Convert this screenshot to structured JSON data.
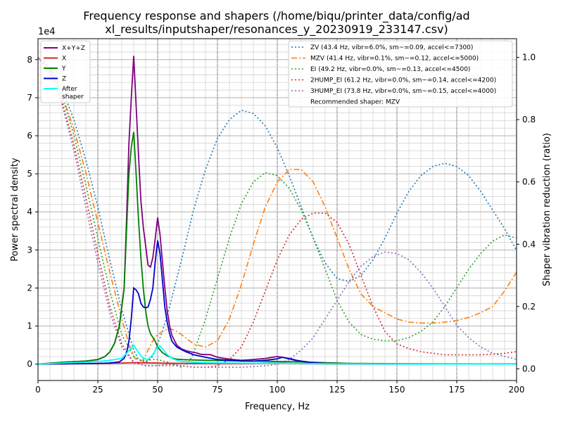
{
  "chart_data": {
    "type": "line",
    "title_line1": "Frequency response and shapers (/home/biqu/printer_data/config/ad",
    "title_line2": "xl_results/inputshaper/resonances_y_20230919_233147.csv)",
    "xlabel": "Frequency, Hz",
    "ylabel": "Power spectral density",
    "y2label": "Shaper vibration reduction (ratio)",
    "y_multiplier": "1e4",
    "xlim": [
      0,
      200
    ],
    "ylim": [
      -4300,
      85500
    ],
    "y2lim": [
      -0.0375,
      1.06
    ],
    "x_ticks": [
      0,
      25,
      50,
      75,
      100,
      125,
      150,
      175,
      200
    ],
    "y_ticks": [
      0,
      10000,
      20000,
      30000,
      40000,
      50000,
      60000,
      70000,
      80000
    ],
    "y_tick_labels": [
      "0",
      "1",
      "2",
      "3",
      "4",
      "5",
      "6",
      "7",
      "8"
    ],
    "y2_ticks": [
      0.0,
      0.2,
      0.4,
      0.6,
      0.8,
      1.0
    ],
    "y2_tick_labels": [
      "0.0",
      "0.2",
      "0.4",
      "0.6",
      "0.8",
      "1.0"
    ],
    "grid": true,
    "legend_left_placement": "top-left",
    "legend_right_placement": "top-right",
    "psd_series": [
      {
        "name": "X+Y+Z",
        "color": "#800080",
        "x": [
          0,
          10,
          20,
          25,
          28,
          30,
          32,
          34,
          36,
          37,
          38,
          39,
          40,
          41,
          42,
          43,
          44,
          45,
          46,
          47,
          48,
          49,
          50,
          51,
          52,
          53,
          54,
          55,
          56,
          58,
          60,
          62,
          64,
          66,
          68,
          70,
          72,
          75,
          80,
          85,
          90,
          95,
          100,
          102,
          105,
          110,
          115,
          120,
          130,
          140,
          150,
          160,
          170,
          180,
          190,
          200
        ],
        "y": [
          0,
          500,
          800,
          1200,
          2000,
          3200,
          5500,
          10000,
          20000,
          38000,
          58000,
          70000,
          81000,
          68000,
          55000,
          43000,
          36000,
          31000,
          26000,
          25500,
          28000,
          33000,
          38500,
          34000,
          27000,
          20000,
          14000,
          10000,
          7500,
          5000,
          4000,
          3500,
          3200,
          3000,
          2600,
          2500,
          2500,
          1800,
          1300,
          1000,
          1200,
          1500,
          2000,
          1800,
          1400,
          600,
          300,
          150,
          100,
          80,
          70,
          60,
          50,
          40,
          30,
          20
        ]
      },
      {
        "name": "X",
        "color": "#d62728",
        "x": [
          0,
          10,
          20,
          30,
          40,
          45,
          50,
          55,
          60,
          70,
          80,
          90,
          100,
          105,
          110,
          120,
          130,
          150,
          200
        ],
        "y": [
          0,
          80,
          120,
          200,
          400,
          350,
          300,
          250,
          200,
          150,
          150,
          200,
          400,
          300,
          150,
          80,
          50,
          30,
          20
        ]
      },
      {
        "name": "Y",
        "color": "#008000",
        "x": [
          0,
          10,
          20,
          25,
          28,
          30,
          32,
          34,
          36,
          37,
          38,
          39,
          40,
          41,
          42,
          43,
          44,
          45,
          46,
          47,
          48,
          49,
          50,
          52,
          54,
          56,
          58,
          60,
          65,
          70,
          80,
          90,
          100,
          110,
          120,
          130,
          150,
          200
        ],
        "y": [
          0,
          500,
          800,
          1200,
          2000,
          3200,
          5500,
          10000,
          20000,
          35000,
          50000,
          57000,
          61000,
          50000,
          38000,
          28000,
          20000,
          14000,
          10000,
          8000,
          7000,
          6000,
          4500,
          3000,
          2200,
          1600,
          1300,
          1200,
          1100,
          1000,
          900,
          800,
          700,
          600,
          400,
          200,
          100,
          50
        ]
      },
      {
        "name": "Z",
        "color": "#0000cc",
        "x": [
          0,
          10,
          20,
          25,
          30,
          34,
          36,
          37,
          38,
          39,
          40,
          41,
          42,
          43,
          44,
          45,
          46,
          47,
          48,
          49,
          50,
          51,
          52,
          53,
          54,
          55,
          56,
          58,
          60,
          62,
          65,
          70,
          75,
          80,
          85,
          90,
          95,
          100,
          102,
          105,
          108,
          110,
          115,
          120,
          130,
          150,
          200
        ],
        "y": [
          0,
          100,
          150,
          200,
          300,
          600,
          1500,
          3000,
          6000,
          12000,
          20000,
          19500,
          18500,
          16000,
          15000,
          14800,
          15000,
          17000,
          20000,
          27000,
          32500,
          29000,
          22000,
          15000,
          11000,
          8000,
          6000,
          4500,
          3800,
          3200,
          2500,
          1800,
          1200,
          1000,
          800,
          800,
          1000,
          1400,
          1800,
          1500,
          1000,
          800,
          400,
          200,
          100,
          50,
          20
        ]
      },
      {
        "name": "After\nshaper",
        "color": "#00ffff",
        "x": [
          0,
          10,
          20,
          25,
          30,
          35,
          38,
          40,
          42,
          44,
          46,
          48,
          50,
          51,
          52,
          54,
          56,
          58,
          60,
          65,
          70,
          80,
          90,
          100,
          110,
          120,
          150,
          200
        ],
        "y": [
          0,
          300,
          500,
          700,
          1000,
          1500,
          3500,
          5000,
          3000,
          1500,
          1200,
          2500,
          4500,
          4800,
          4000,
          2500,
          1500,
          1000,
          700,
          500,
          400,
          300,
          250,
          300,
          200,
          100,
          50,
          20
        ]
      }
    ],
    "shaper_series": [
      {
        "name": "ZV (43.4 Hz, vibr=6.0%, sm~=0.09, accel<=7300)",
        "color": "#1f77b4",
        "dash": "2,3",
        "x": [
          0,
          5,
          10,
          15,
          20,
          25,
          30,
          35,
          40,
          42,
          45,
          48,
          50,
          52,
          55,
          60,
          65,
          70,
          75,
          80,
          85,
          90,
          95,
          100,
          105,
          110,
          115,
          120,
          125,
          130,
          135,
          140,
          145,
          150,
          155,
          160,
          165,
          170,
          175,
          180,
          185,
          190,
          195,
          200
        ],
        "y": [
          1.0,
          0.97,
          0.9,
          0.8,
          0.67,
          0.52,
          0.35,
          0.19,
          0.06,
          0.03,
          0.02,
          0.04,
          0.08,
          0.12,
          0.2,
          0.35,
          0.51,
          0.64,
          0.74,
          0.8,
          0.83,
          0.82,
          0.78,
          0.71,
          0.62,
          0.52,
          0.42,
          0.34,
          0.29,
          0.28,
          0.3,
          0.35,
          0.42,
          0.5,
          0.57,
          0.62,
          0.65,
          0.66,
          0.65,
          0.62,
          0.57,
          0.51,
          0.45,
          0.38
        ]
      },
      {
        "name": "MZV (41.4 Hz, vibr=0.1%, sm~=0.12, accel<=5000)",
        "color": "#ff7f0e",
        "dash": "8,3,2,3",
        "x": [
          0,
          5,
          10,
          15,
          20,
          25,
          30,
          35,
          38,
          40,
          42,
          44,
          46,
          48,
          50,
          52,
          55,
          58,
          60,
          65,
          70,
          75,
          80,
          85,
          90,
          95,
          100,
          105,
          110,
          115,
          120,
          125,
          130,
          135,
          140,
          145,
          150,
          155,
          160,
          165,
          170,
          175,
          180,
          185,
          190,
          195,
          200
        ],
        "y": [
          1.0,
          0.96,
          0.88,
          0.77,
          0.63,
          0.47,
          0.31,
          0.16,
          0.08,
          0.04,
          0.02,
          0.03,
          0.06,
          0.09,
          0.11,
          0.12,
          0.13,
          0.12,
          0.11,
          0.08,
          0.07,
          0.09,
          0.16,
          0.27,
          0.4,
          0.52,
          0.6,
          0.64,
          0.64,
          0.6,
          0.52,
          0.42,
          0.32,
          0.24,
          0.2,
          0.18,
          0.16,
          0.15,
          0.147,
          0.147,
          0.15,
          0.155,
          0.165,
          0.18,
          0.2,
          0.25,
          0.31
        ]
      },
      {
        "name": "EI (49.2 Hz, vibr=0.0%, sm~=0.13, accel<=4500)",
        "color": "#2ca02c",
        "dash": "2,3",
        "x": [
          0,
          5,
          10,
          15,
          20,
          25,
          30,
          35,
          40,
          42,
          45,
          48,
          50,
          52,
          55,
          58,
          60,
          63,
          65,
          70,
          75,
          80,
          85,
          90,
          95,
          100,
          105,
          110,
          115,
          120,
          125,
          130,
          135,
          140,
          145,
          150,
          155,
          160,
          165,
          170,
          175,
          180,
          185,
          190,
          195,
          200
        ],
        "y": [
          1.0,
          0.96,
          0.88,
          0.75,
          0.59,
          0.42,
          0.25,
          0.11,
          0.04,
          0.03,
          0.025,
          0.03,
          0.03,
          0.025,
          0.02,
          0.01,
          0.005,
          0.02,
          0.05,
          0.16,
          0.29,
          0.42,
          0.53,
          0.6,
          0.63,
          0.62,
          0.58,
          0.51,
          0.42,
          0.32,
          0.22,
          0.15,
          0.11,
          0.095,
          0.09,
          0.09,
          0.1,
          0.12,
          0.15,
          0.2,
          0.26,
          0.32,
          0.37,
          0.41,
          0.43,
          0.42
        ]
      },
      {
        "name": "2HUMP_EI (61.2 Hz, vibr=0.0%, sm~=0.14, accel<=4200)",
        "color": "#d62728",
        "dash": "2,3",
        "x": [
          0,
          5,
          10,
          15,
          20,
          25,
          30,
          35,
          40,
          45,
          50,
          55,
          60,
          65,
          70,
          75,
          80,
          85,
          90,
          95,
          100,
          105,
          110,
          115,
          120,
          125,
          130,
          135,
          140,
          145,
          150,
          155,
          160,
          165,
          170,
          175,
          180,
          185,
          190,
          195,
          200
        ],
        "y": [
          1.0,
          0.95,
          0.86,
          0.72,
          0.55,
          0.37,
          0.2,
          0.08,
          0.02,
          0.01,
          0.01,
          0.015,
          0.01,
          0.005,
          0.005,
          0.01,
          0.03,
          0.07,
          0.15,
          0.25,
          0.35,
          0.43,
          0.48,
          0.5,
          0.5,
          0.47,
          0.4,
          0.3,
          0.2,
          0.12,
          0.08,
          0.065,
          0.055,
          0.05,
          0.045,
          0.045,
          0.045,
          0.045,
          0.047,
          0.05,
          0.055
        ]
      },
      {
        "name": "3HUMP_EI (73.8 Hz, vibr=0.0%, sm~=0.15, accel<=4000)",
        "color": "#9467bd",
        "dash": "2,3",
        "x": [
          0,
          5,
          10,
          15,
          20,
          25,
          30,
          35,
          40,
          45,
          50,
          55,
          60,
          65,
          70,
          75,
          80,
          85,
          90,
          95,
          100,
          105,
          110,
          115,
          120,
          125,
          130,
          135,
          140,
          145,
          150,
          155,
          160,
          165,
          170,
          175,
          180,
          185,
          190,
          195,
          200
        ],
        "y": [
          1.0,
          0.95,
          0.85,
          0.7,
          0.52,
          0.34,
          0.18,
          0.07,
          0.02,
          0.01,
          0.01,
          0.01,
          0.01,
          0.005,
          0.005,
          0.005,
          0.005,
          0.005,
          0.007,
          0.01,
          0.015,
          0.03,
          0.06,
          0.1,
          0.16,
          0.22,
          0.28,
          0.33,
          0.36,
          0.375,
          0.37,
          0.35,
          0.31,
          0.26,
          0.2,
          0.14,
          0.1,
          0.07,
          0.05,
          0.04,
          0.03
        ]
      }
    ],
    "recommended_text": "Recommended shaper: MZV"
  }
}
